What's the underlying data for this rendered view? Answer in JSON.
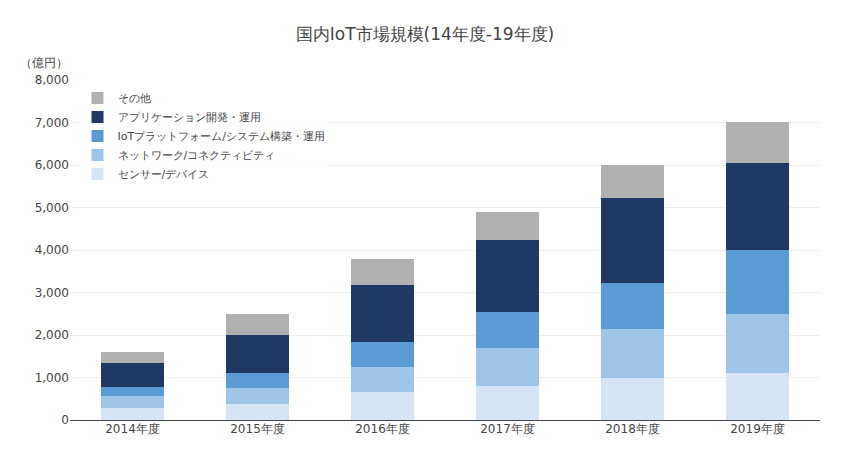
{
  "chart_data": {
    "type": "bar",
    "stacked": true,
    "title": "国内IoT市場規模(14年度-19年度)",
    "ylabel": "（億円）",
    "categories": [
      "2014年度",
      "2015年度",
      "2016年度",
      "2017年度",
      "2018年度",
      "2019年度"
    ],
    "series": [
      {
        "name": "センサー/デバイス",
        "color": "#d6e4f5",
        "values": [
          280,
          380,
          650,
          800,
          980,
          1100
        ]
      },
      {
        "name": "ネットワーク/コネクティビティ",
        "color": "#9ec4e8",
        "values": [
          280,
          380,
          600,
          900,
          1150,
          1400
        ]
      },
      {
        "name": "IoTプラットフォーム/システム構築・運用",
        "color": "#5b9bd5",
        "values": [
          220,
          350,
          580,
          830,
          1100,
          1500
        ]
      },
      {
        "name": "アプリケーション開発・運用",
        "color": "#1f3864",
        "values": [
          550,
          900,
          1350,
          1700,
          2000,
          2050
        ]
      },
      {
        "name": "その他",
        "color": "#b0b0b0",
        "values": [
          270,
          490,
          620,
          670,
          770,
          960
        ]
      }
    ],
    "ylim": [
      0,
      8000
    ],
    "yticks": [
      0,
      {
        "value": 1000,
        "label": "1,000"
      },
      {
        "value": 2000,
        "label": "2,000"
      },
      {
        "value": 3000,
        "label": "3,000"
      },
      {
        "value": 4000,
        "label": "4,000"
      },
      {
        "value": 5000,
        "label": "5,000"
      },
      {
        "value": 6000,
        "label": "6,000"
      },
      {
        "value": 7000,
        "label": "7,000"
      },
      {
        "value": 8000,
        "label": "8,000"
      }
    ],
    "grid": true,
    "legend": "upper left"
  }
}
